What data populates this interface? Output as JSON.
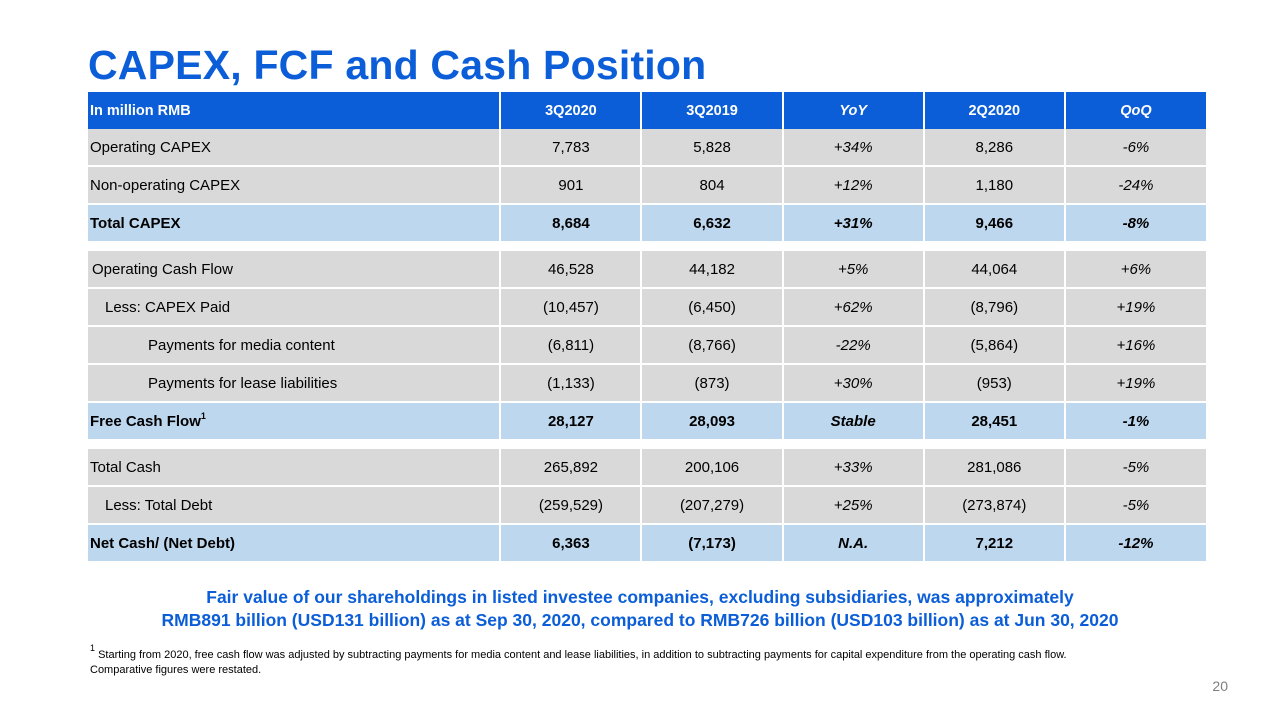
{
  "title": "CAPEX, FCF and Cash Position",
  "table": {
    "headers": [
      "In million RMB",
      "3Q2020",
      "3Q2019",
      "YoY",
      "2Q2020",
      "QoQ"
    ],
    "capex_rows": [
      {
        "label": "Operating CAPEX",
        "values": [
          "7,783",
          "5,828",
          "+34%",
          "8,286",
          "-6%"
        ]
      },
      {
        "label": "Non-operating CAPEX",
        "values": [
          "901",
          "804",
          "+12%",
          "1,180",
          "-24%"
        ]
      },
      {
        "label": "Total CAPEX",
        "values": [
          "8,684",
          "6,632",
          "+31%",
          "9,466",
          "-8%"
        ]
      }
    ],
    "fcf_rows": [
      {
        "label": "Operating Cash Flow",
        "values": [
          "46,528",
          "44,182",
          "+5%",
          "44,064",
          "+6%"
        ]
      },
      {
        "label": "Less: CAPEX Paid",
        "values": [
          "(10,457)",
          "(6,450)",
          "+62%",
          "(8,796)",
          "+19%"
        ]
      },
      {
        "label": "Payments for media content",
        "values": [
          "(6,811)",
          "(8,766)",
          "-22%",
          "(5,864)",
          "+16%"
        ]
      },
      {
        "label": "Payments for lease liabilities",
        "values": [
          "(1,133)",
          "(873)",
          "+30%",
          "(953)",
          "+19%"
        ]
      },
      {
        "label": "Free Cash Flow",
        "sup": "1",
        "values": [
          "28,127",
          "28,093",
          "Stable",
          "28,451",
          "-1%"
        ]
      }
    ],
    "cash_rows": [
      {
        "label": "Total Cash",
        "values": [
          "265,892",
          "200,106",
          "+33%",
          "281,086",
          "-5%"
        ]
      },
      {
        "label": "Less: Total Debt",
        "values": [
          "(259,529)",
          "(207,279)",
          "+25%",
          "(273,874)",
          "-5%"
        ]
      },
      {
        "label": "Net Cash/ (Net Debt)",
        "values": [
          "6,363",
          "(7,173)",
          "N.A.",
          "7,212",
          "-12%"
        ]
      }
    ]
  },
  "note_line1": "Fair value of our shareholdings in listed investee companies, excluding subsidiaries, was approximately",
  "note_line2": "RMB891 billion (USD131 billion) as at Sep 30, 2020, compared to RMB726 billion (USD103 billion) as at Jun 30, 2020",
  "footnote_marker": "1",
  "footnote_line1": "Starting from 2020, free cash flow was adjusted by subtracting payments for media content and lease liabilities, in addition to subtracting payments for capital expenditure from the operating cash flow.",
  "footnote_line2": "Comparative figures were restated.",
  "page_number": "20",
  "colors": {
    "accent": "#0b5ed7",
    "row_grey": "#d9d9d9",
    "row_total": "#bdd7ee"
  }
}
